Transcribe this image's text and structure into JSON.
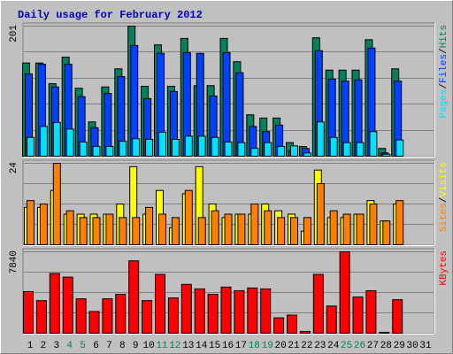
{
  "chart_data": [
    {
      "type": "bar",
      "title": "Daily usage for February 2012",
      "ylim": [
        0,
        201
      ],
      "yticks": [
        201
      ],
      "grid_divisions": 5,
      "legend_separator": "/",
      "series": [
        {
          "name": "Hits",
          "color": "#00805c",
          "values": [
            144,
            144,
            112,
            153,
            105,
            53,
            107,
            135,
            201,
            108,
            172,
            108,
            182,
            109,
            109,
            182,
            146,
            64,
            59,
            59,
            21,
            15,
            183,
            133,
            133,
            133,
            180,
            12,
            135,
            null,
            null
          ]
        },
        {
          "name": "Files",
          "color": "#0040ff",
          "values": [
            127,
            142,
            107,
            142,
            92,
            44,
            97,
            123,
            171,
            89,
            159,
            100,
            160,
            159,
            93,
            160,
            129,
            46,
            38,
            48,
            8,
            12,
            163,
            119,
            116,
            118,
            167,
            5,
            116,
            null,
            null
          ]
        },
        {
          "name": "Pages",
          "color": "#00e0ff",
          "values": [
            29,
            46,
            52,
            42,
            22,
            15,
            15,
            23,
            27,
            26,
            37,
            26,
            31,
            31,
            29,
            22,
            21,
            12,
            21,
            15,
            16,
            5,
            53,
            29,
            21,
            21,
            38,
            3,
            25,
            null,
            null
          ]
        }
      ]
    },
    {
      "type": "bar",
      "ylim": [
        0,
        24
      ],
      "yticks": [
        24
      ],
      "grid_divisions": 4,
      "legend_separator": "/",
      "series": [
        {
          "name": "Visits",
          "color": "#ffff00",
          "values": [
            11,
            11,
            16,
            9,
            9,
            9,
            9,
            12,
            23,
            9,
            16,
            5,
            15,
            23,
            12,
            8,
            9,
            9,
            12,
            10,
            9,
            4,
            22,
            8,
            8,
            9,
            13,
            7,
            12,
            null,
            null
          ]
        },
        {
          "name": "Sites",
          "color": "#ff8000",
          "values": [
            13,
            12,
            24,
            10,
            8,
            8,
            9,
            8,
            8,
            11,
            9,
            8,
            16,
            8,
            10,
            9,
            9,
            12,
            10,
            8,
            8,
            8,
            18,
            10,
            9,
            9,
            12,
            7,
            13,
            null,
            null
          ]
        }
      ]
    },
    {
      "type": "bar",
      "ylim": [
        0,
        7840
      ],
      "yticks": [
        7840
      ],
      "grid_divisions": 4,
      "categories": [
        1,
        2,
        3,
        4,
        5,
        6,
        7,
        8,
        9,
        10,
        11,
        12,
        13,
        14,
        15,
        16,
        17,
        18,
        19,
        20,
        21,
        22,
        23,
        24,
        25,
        26,
        27,
        28,
        29,
        30,
        31
      ],
      "category_colors": [
        "#000000",
        "#000000",
        "#000000",
        "#00805c",
        "#00805c",
        "#000000",
        "#000000",
        "#000000",
        "#000000",
        "#000000",
        "#00805c",
        "#00805c",
        "#000000",
        "#000000",
        "#000000",
        "#000000",
        "#000000",
        "#00805c",
        "#00805c",
        "#000000",
        "#000000",
        "#000000",
        "#000000",
        "#000000",
        "#00805c",
        "#00805c",
        "#000000",
        "#000000",
        "#000000",
        "#000000",
        "#000000"
      ],
      "series": [
        {
          "name": "KBytes",
          "color": "#ff0000",
          "values": [
            4008,
            3136,
            5749,
            5401,
            3310,
            2091,
            3310,
            3746,
            6969,
            3136,
            5662,
            3397,
            4704,
            4268,
            3746,
            4443,
            4094,
            4356,
            4268,
            1481,
            1742,
            174,
            5662,
            2613,
            7840,
            3484,
            4094,
            87,
            3223,
            null,
            null
          ]
        }
      ]
    }
  ]
}
